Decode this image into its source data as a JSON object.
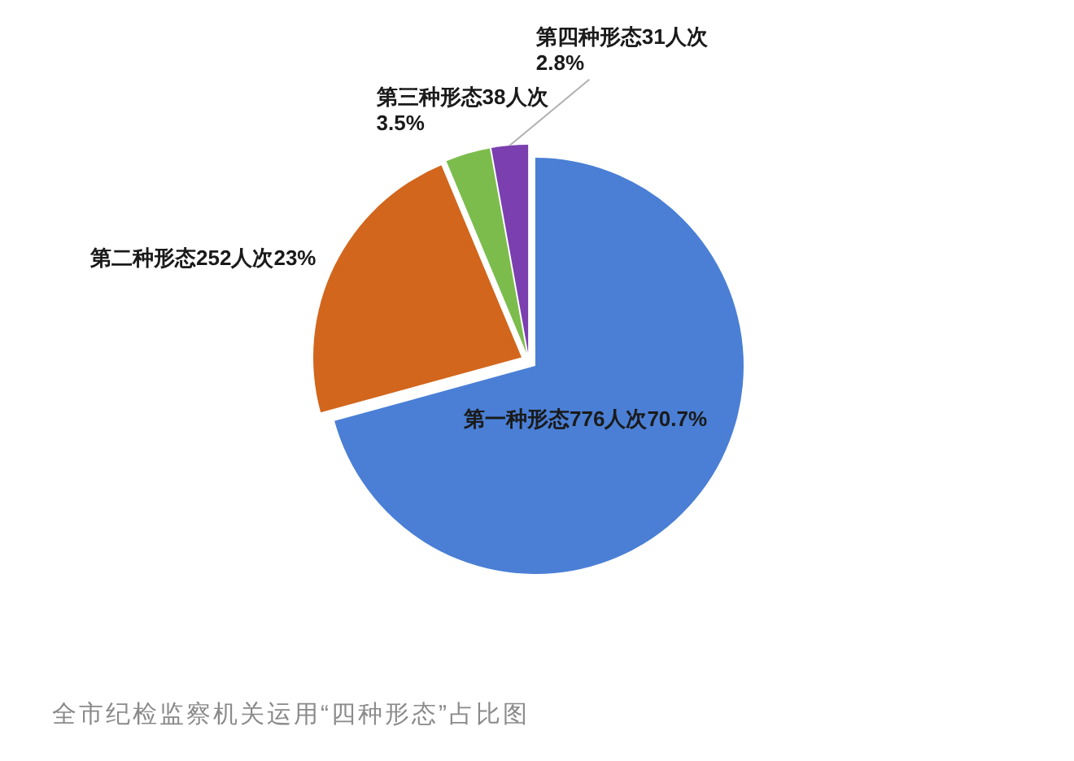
{
  "chart_data": {
    "type": "pie",
    "title": "全市纪检监察机关运用“四种形态”占比图",
    "categories": [
      "第一种形态",
      "第二种形态",
      "第三种形态",
      "第四种形态"
    ],
    "values": [
      776,
      252,
      38,
      31
    ],
    "colors": [
      "#4a7fd5",
      "#d2661c",
      "#7cbc4c",
      "#7b3fb0"
    ],
    "value_labels": [
      "776人次70.7%",
      "252人次23%",
      "38人次\n3.5%",
      "31人次\n2.8%"
    ]
  }
}
